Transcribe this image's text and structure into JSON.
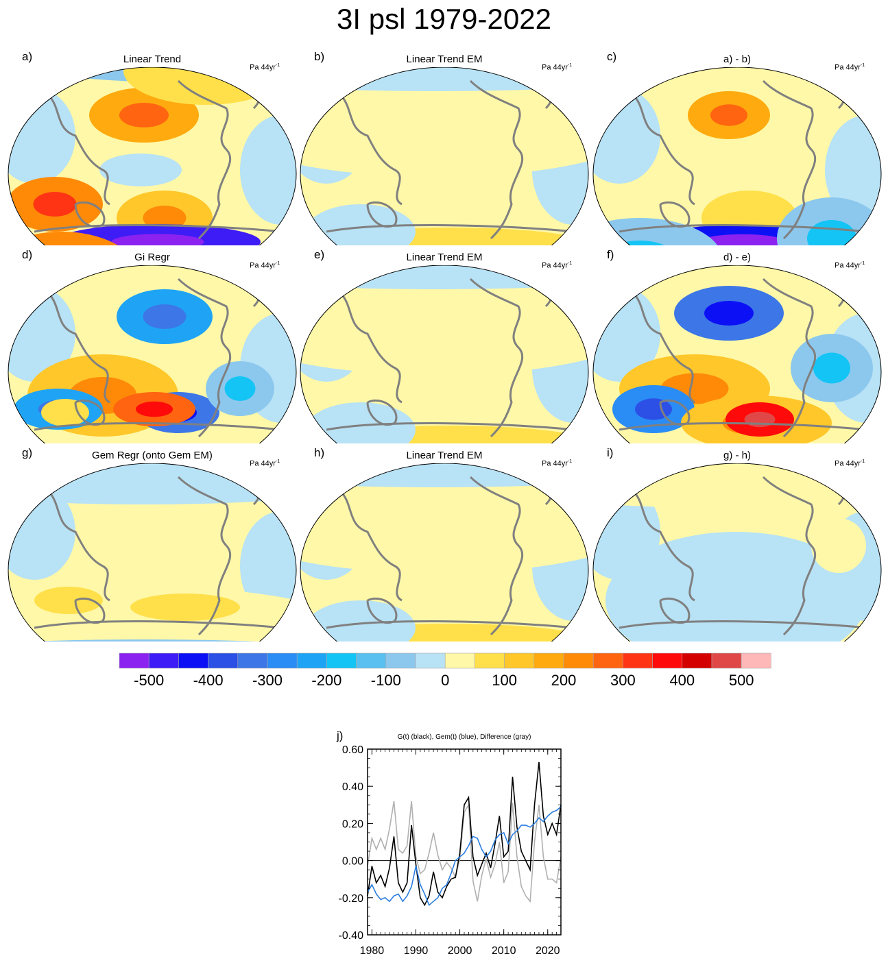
{
  "title": "3I psl 1979-2022",
  "panels": [
    {
      "letter": "a)",
      "title": "Linear Trend",
      "units": "Pa 44yr",
      "units_sup": "-1",
      "scheme": "a"
    },
    {
      "letter": "b)",
      "title": "Linear Trend EM",
      "units": "Pa 44yr",
      "units_sup": "-1",
      "scheme": "b"
    },
    {
      "letter": "c)",
      "title": "a) - b)",
      "units": "Pa 44yr",
      "units_sup": "-1",
      "scheme": "c"
    },
    {
      "letter": "d)",
      "title": "Gi Regr",
      "units": "Pa 44yr",
      "units_sup": "-1",
      "scheme": "d"
    },
    {
      "letter": "e)",
      "title": "Linear Trend EM",
      "units": "Pa 44yr",
      "units_sup": "-1",
      "scheme": "b"
    },
    {
      "letter": "f)",
      "title": "d) - e)",
      "units": "Pa 44yr",
      "units_sup": "-1",
      "scheme": "f"
    },
    {
      "letter": "g)",
      "title": "Gem Regr (onto Gem EM)",
      "units": "Pa 44yr",
      "units_sup": "-1",
      "scheme": "g"
    },
    {
      "letter": "h)",
      "title": "Linear Trend EM",
      "units": "Pa 44yr",
      "units_sup": "-1",
      "scheme": "b"
    },
    {
      "letter": "i)",
      "title": "g) - h)",
      "units": "Pa 44yr",
      "units_sup": "-1",
      "scheme": "i"
    }
  ],
  "colorbar": {
    "colors": [
      "#8b22f0",
      "#3e1cf5",
      "#0c10f5",
      "#2c50e6",
      "#3d76e6",
      "#2a8cf5",
      "#1fa4f5",
      "#14c4f5",
      "#5ac0f0",
      "#8cc8ee",
      "#b8e2f5",
      "#fff8a8",
      "#ffe04a",
      "#ffc72a",
      "#ffaa0e",
      "#ff8a08",
      "#ff6410",
      "#ff3414",
      "#ff0a0a",
      "#d40000",
      "#e04848",
      "#ffb8b8"
    ],
    "labels": [
      "-500",
      "-400",
      "-300",
      "-200",
      "-100",
      "0",
      "100",
      "200",
      "300",
      "400",
      "500"
    ]
  },
  "chart_data": {
    "type": "line",
    "panel_letter": "j)",
    "title": "G(t)  (black), Gem(t) (blue), Difference (gray)",
    "xlabel": "",
    "ylabel": "",
    "xlim": [
      1979,
      2023
    ],
    "ylim": [
      -0.4,
      0.6
    ],
    "x_ticks": [
      1980,
      1990,
      2000,
      2010,
      2020
    ],
    "x_tick_labels": [
      "1980",
      "1990",
      "2000",
      "2010",
      "2020"
    ],
    "y_ticks": [
      -0.4,
      -0.2,
      0.0,
      0.2,
      0.4,
      0.6
    ],
    "y_tick_labels": [
      "-0.40",
      "-0.20",
      "0.00",
      "0.20",
      "0.40",
      "0.60"
    ],
    "zero_line": true,
    "series": [
      {
        "name": "G(t)",
        "color": "#000000",
        "x": [
          1979,
          1980,
          1981,
          1982,
          1983,
          1984,
          1985,
          1986,
          1987,
          1988,
          1989,
          1990,
          1991,
          1992,
          1993,
          1994,
          1995,
          1996,
          1997,
          1998,
          1999,
          2000,
          2001,
          2002,
          2003,
          2004,
          2005,
          2006,
          2007,
          2008,
          2009,
          2010,
          2011,
          2012,
          2013,
          2014,
          2015,
          2016,
          2017,
          2018,
          2019,
          2020,
          2021,
          2022,
          2023
        ],
        "values": [
          -0.19,
          -0.03,
          -0.12,
          -0.08,
          -0.14,
          -0.04,
          0.13,
          -0.12,
          -0.17,
          -0.12,
          0.19,
          -0.02,
          -0.2,
          -0.24,
          -0.19,
          -0.06,
          -0.17,
          -0.2,
          -0.14,
          -0.1,
          -0.09,
          0.04,
          0.3,
          0.34,
          0.02,
          -0.08,
          -0.02,
          0.04,
          -0.04,
          0.09,
          0.24,
          0.02,
          0.05,
          0.45,
          0.18,
          0.05,
          0.0,
          -0.05,
          0.3,
          0.53,
          0.24,
          0.14,
          0.2,
          0.14,
          0.3
        ]
      },
      {
        "name": "Gem(t)",
        "color": "#2b7de0",
        "x": [
          1979,
          1980,
          1981,
          1982,
          1983,
          1984,
          1985,
          1986,
          1987,
          1988,
          1989,
          1990,
          1991,
          1992,
          1993,
          1994,
          1995,
          1996,
          1997,
          1998,
          1999,
          2000,
          2001,
          2002,
          2003,
          2004,
          2005,
          2006,
          2007,
          2008,
          2009,
          2010,
          2011,
          2012,
          2013,
          2014,
          2015,
          2016,
          2017,
          2018,
          2019,
          2020,
          2021,
          2022,
          2023
        ],
        "values": [
          -0.17,
          -0.13,
          -0.18,
          -0.21,
          -0.2,
          -0.22,
          -0.19,
          -0.18,
          -0.22,
          -0.19,
          -0.14,
          -0.03,
          -0.13,
          -0.18,
          -0.24,
          -0.22,
          -0.2,
          -0.15,
          -0.13,
          -0.07,
          0.0,
          0.02,
          0.04,
          0.08,
          0.13,
          0.12,
          0.06,
          0.02,
          0.05,
          0.11,
          0.14,
          0.15,
          0.09,
          0.14,
          0.16,
          0.19,
          0.19,
          0.18,
          0.2,
          0.23,
          0.21,
          0.24,
          0.26,
          0.27,
          0.29
        ]
      },
      {
        "name": "Difference",
        "color": "#b0b0b0",
        "x": [
          1979,
          1980,
          1981,
          1982,
          1983,
          1984,
          1985,
          1986,
          1987,
          1988,
          1989,
          1990,
          1991,
          1992,
          1993,
          1994,
          1995,
          1996,
          1997,
          1998,
          1999,
          2000,
          2001,
          2002,
          2003,
          2004,
          2005,
          2006,
          2007,
          2008,
          2009,
          2010,
          2011,
          2012,
          2013,
          2014,
          2015,
          2016,
          2017,
          2018,
          2019,
          2020,
          2021,
          2022,
          2023
        ],
        "values": [
          -0.03,
          0.12,
          0.06,
          0.12,
          0.06,
          0.17,
          0.32,
          0.06,
          0.04,
          0.08,
          0.32,
          0.02,
          -0.07,
          -0.05,
          0.04,
          0.15,
          0.03,
          -0.05,
          -0.01,
          -0.04,
          -0.09,
          0.01,
          0.26,
          0.3,
          -0.11,
          -0.22,
          -0.08,
          0.01,
          -0.09,
          -0.02,
          0.1,
          -0.12,
          -0.06,
          0.31,
          0.02,
          -0.14,
          -0.19,
          -0.22,
          0.1,
          0.3,
          0.02,
          -0.1,
          -0.1,
          -0.12,
          0.02
        ]
      }
    ]
  }
}
